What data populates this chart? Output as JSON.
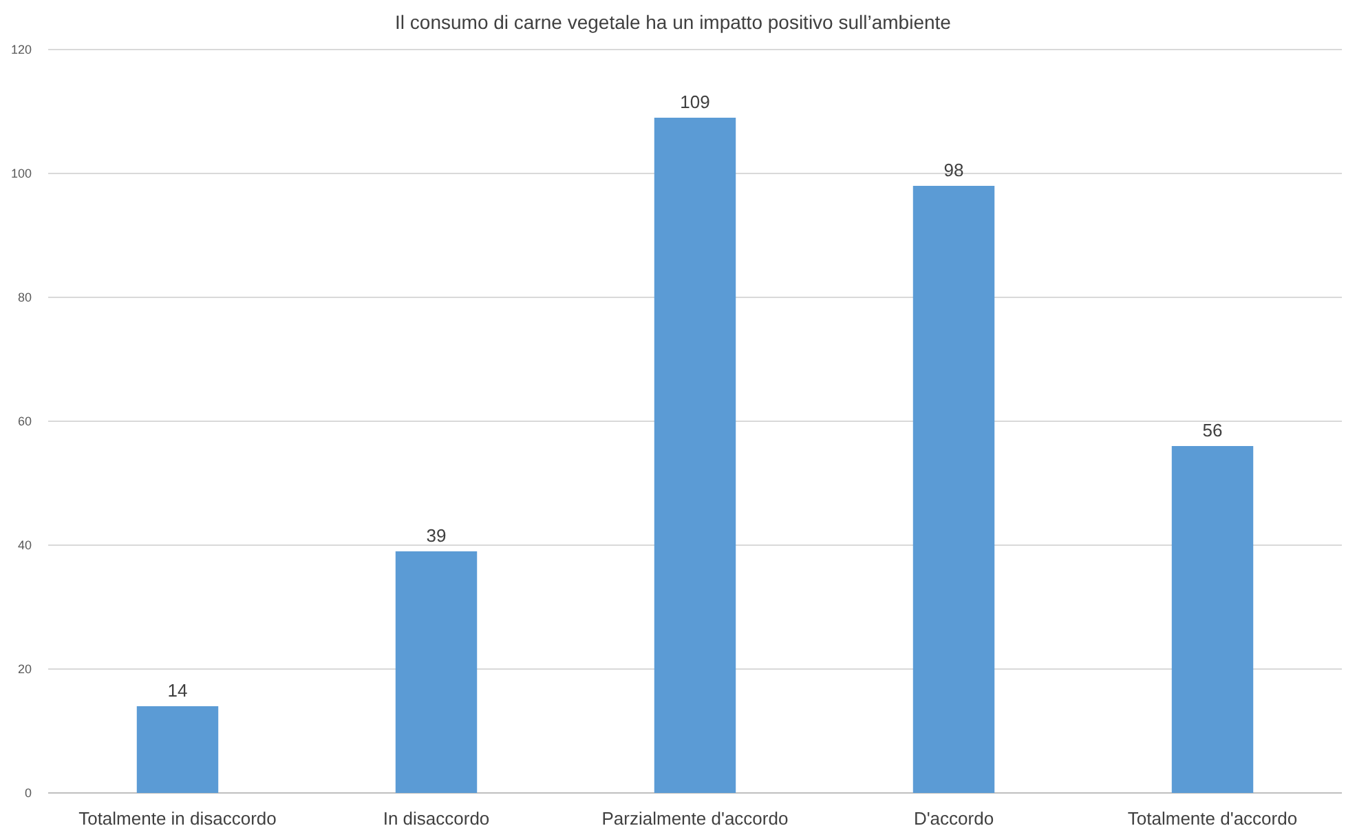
{
  "chart_data": {
    "type": "bar",
    "title": "Il consumo di carne vegetale ha un impatto positivo sull’ambiente",
    "categories": [
      "Totalmente in disaccordo",
      "In disaccordo",
      "Parzialmente d'accordo",
      "D'accordo",
      "Totalmente d'accordo"
    ],
    "values": [
      14,
      39,
      109,
      98,
      56
    ],
    "color": "#5b9bd5",
    "data_labels": true,
    "ylim": [
      0,
      120
    ],
    "yticks": [
      0,
      20,
      40,
      60,
      80,
      100,
      120
    ],
    "grid": "y"
  }
}
